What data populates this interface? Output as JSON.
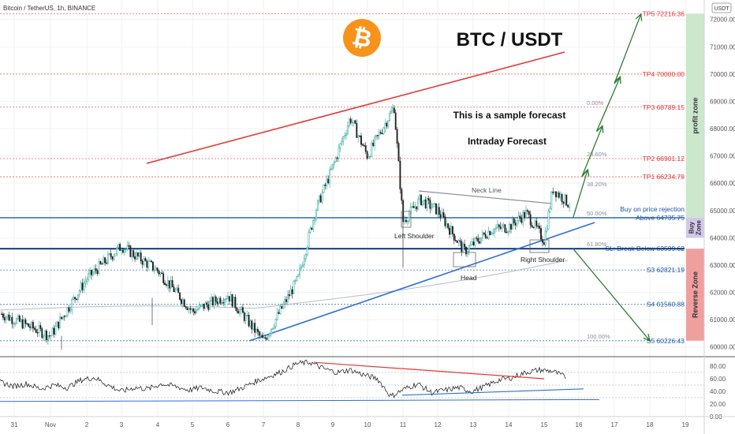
{
  "header": {
    "symbol_line": "Bitcoin / TetherUS, 1h, BINANCE"
  },
  "title": "BTC / USDT",
  "subtitle_1": "This is a sample forecast",
  "subtitle_2": "Intraday Forecast",
  "currency_badge": "USDT",
  "logo": {
    "glyph": "₿",
    "color": "#f7931a"
  },
  "zones": [
    {
      "label": "profit zone",
      "color": "#c8e6c9",
      "from": 64735.75,
      "to": 72216.36
    },
    {
      "label": "Buy Zone",
      "color": "#d1c4e9",
      "from": 64000,
      "to": 64735.75
    },
    {
      "label": "Reverse Zone",
      "color": "#ef9a9a",
      "from": 60226.43,
      "to": 63599.62
    }
  ],
  "levels": [
    {
      "label": "TP5 72216.36",
      "value": 72216.36,
      "color": "#e53935"
    },
    {
      "label": "TP4 70000.00",
      "value": 70000.0,
      "color": "#e53935"
    },
    {
      "label": "TP3 68789.15",
      "value": 68789.15,
      "color": "#e53935"
    },
    {
      "label": "TP2 66901.12",
      "value": 66901.12,
      "color": "#e53935"
    },
    {
      "label": "TP1 66234.79",
      "value": 66234.79,
      "color": "#e53935"
    },
    {
      "label": "Buy on price rejection",
      "value": 64900,
      "color": "#1e5aa8"
    },
    {
      "label": "Above 64735.75",
      "value": 64735.75,
      "color": "#1e5aa8"
    },
    {
      "label": "SL: Break Below 63599.62",
      "value": 63599.62,
      "color": "#1e5aa8"
    },
    {
      "label": "S3 62821.19",
      "value": 62821.19,
      "color": "#1e5aa8"
    },
    {
      "label": "S4 61560.88",
      "value": 61560.88,
      "color": "#1e5aa8"
    },
    {
      "label": "S5 60226.43",
      "value": 60226.43,
      "color": "#1e5aa8"
    }
  ],
  "fib_levels": [
    {
      "label": "0.00%",
      "value": 68789.15
    },
    {
      "label": "23.60%",
      "value": 66901.12
    },
    {
      "label": "38.20%",
      "value": 65800
    },
    {
      "label": "50.00%",
      "value": 64735.75
    },
    {
      "label": "61.80%",
      "value": 63599.62
    },
    {
      "label": "100.00%",
      "value": 60226.43
    }
  ],
  "pattern_labels": {
    "neck_line": "Neck Line",
    "left_shoulder": "Left Shoulder",
    "head": "Head",
    "right_shoulder": "Right Shoulder"
  },
  "price_axis": {
    "ticks": [
      "72000.00",
      "71000.00",
      "70000.00",
      "69000.00",
      "68000.00",
      "67000.00",
      "66000.00",
      "65000.00",
      "64000.00",
      "63000.00",
      "62000.00",
      "61000.00",
      "60000.00"
    ]
  },
  "rsi_axis": {
    "ticks": [
      "80.00",
      "60.00",
      "40.00",
      "20.00",
      "0.00"
    ]
  },
  "time_axis": {
    "ticks": [
      "31",
      "Nov",
      "2",
      "3",
      "4",
      "5",
      "6",
      "7",
      "8",
      "9",
      "10",
      "11",
      "12",
      "13",
      "14",
      "15",
      "16",
      "17",
      "18",
      "19"
    ]
  },
  "chart_data": {
    "type": "candlestick",
    "title": "BTC / USDT",
    "x_unit": "date (1h candles)",
    "y_unit": "USDT",
    "ylim": [
      59700,
      72600
    ],
    "price_path_keypoints": [
      {
        "x": "Oct 30",
        "price": 61600
      },
      {
        "x": "Oct 31",
        "price": 61000
      },
      {
        "x": "Nov 1",
        "price": 60400
      },
      {
        "x": "Nov 2",
        "price": 62500
      },
      {
        "x": "Nov 3",
        "price": 63700
      },
      {
        "x": "Nov 4",
        "price": 62800
      },
      {
        "x": "Nov 5",
        "price": 61300
      },
      {
        "x": "Nov 6",
        "price": 61900
      },
      {
        "x": "Nov 7",
        "price": 60200
      },
      {
        "x": "Nov 8",
        "price": 62500
      },
      {
        "x": "Nov 8 12:00",
        "price": 65000
      },
      {
        "x": "Nov 9",
        "price": 66600
      },
      {
        "x": "Nov 9 12:00",
        "price": 68400
      },
      {
        "x": "Nov 10",
        "price": 67000
      },
      {
        "x": "Nov 10 18:00",
        "price": 68800
      },
      {
        "x": "Nov 11",
        "price": 64600
      },
      {
        "x": "Nov 11 12:00",
        "price": 65400
      },
      {
        "x": "Nov 12",
        "price": 65000
      },
      {
        "x": "Nov 12 18:00",
        "price": 63500
      },
      {
        "x": "Nov 13 12:00",
        "price": 64300
      },
      {
        "x": "Nov 14",
        "price": 64400
      },
      {
        "x": "Nov 14 12:00",
        "price": 64900
      },
      {
        "x": "Nov 15",
        "price": 63900
      },
      {
        "x": "Nov 15 06:00",
        "price": 65800
      },
      {
        "x": "Nov 15 18:00",
        "price": 65200
      }
    ],
    "forecast_path": [
      {
        "x": "Nov 15 20:00",
        "price": 64735.75
      },
      {
        "x": "Nov 16 12:00",
        "price": 66234.79
      },
      {
        "x": "Nov 17",
        "price": 67900
      },
      {
        "x": "Nov 17 12:00",
        "price": 69500
      },
      {
        "x": "Nov 18",
        "price": 72216.36
      }
    ],
    "reverse_path": [
      {
        "x": "Nov 15 20:00",
        "price": 63599.62
      },
      {
        "x": "Nov 18",
        "price": 60226.43
      }
    ],
    "rsi": {
      "ylim": [
        0,
        90
      ],
      "reference_lines": [
        70,
        50,
        30
      ],
      "path": [
        55,
        48,
        52,
        44,
        50,
        46,
        58,
        62,
        50,
        40,
        46,
        44,
        52,
        48,
        42,
        46,
        40,
        38,
        46,
        56,
        64,
        72,
        84,
        86,
        76,
        70,
        74,
        66,
        60,
        32,
        44,
        52,
        38,
        42,
        46,
        40,
        48,
        58,
        62,
        70,
        74,
        72,
        62
      ]
    }
  }
}
